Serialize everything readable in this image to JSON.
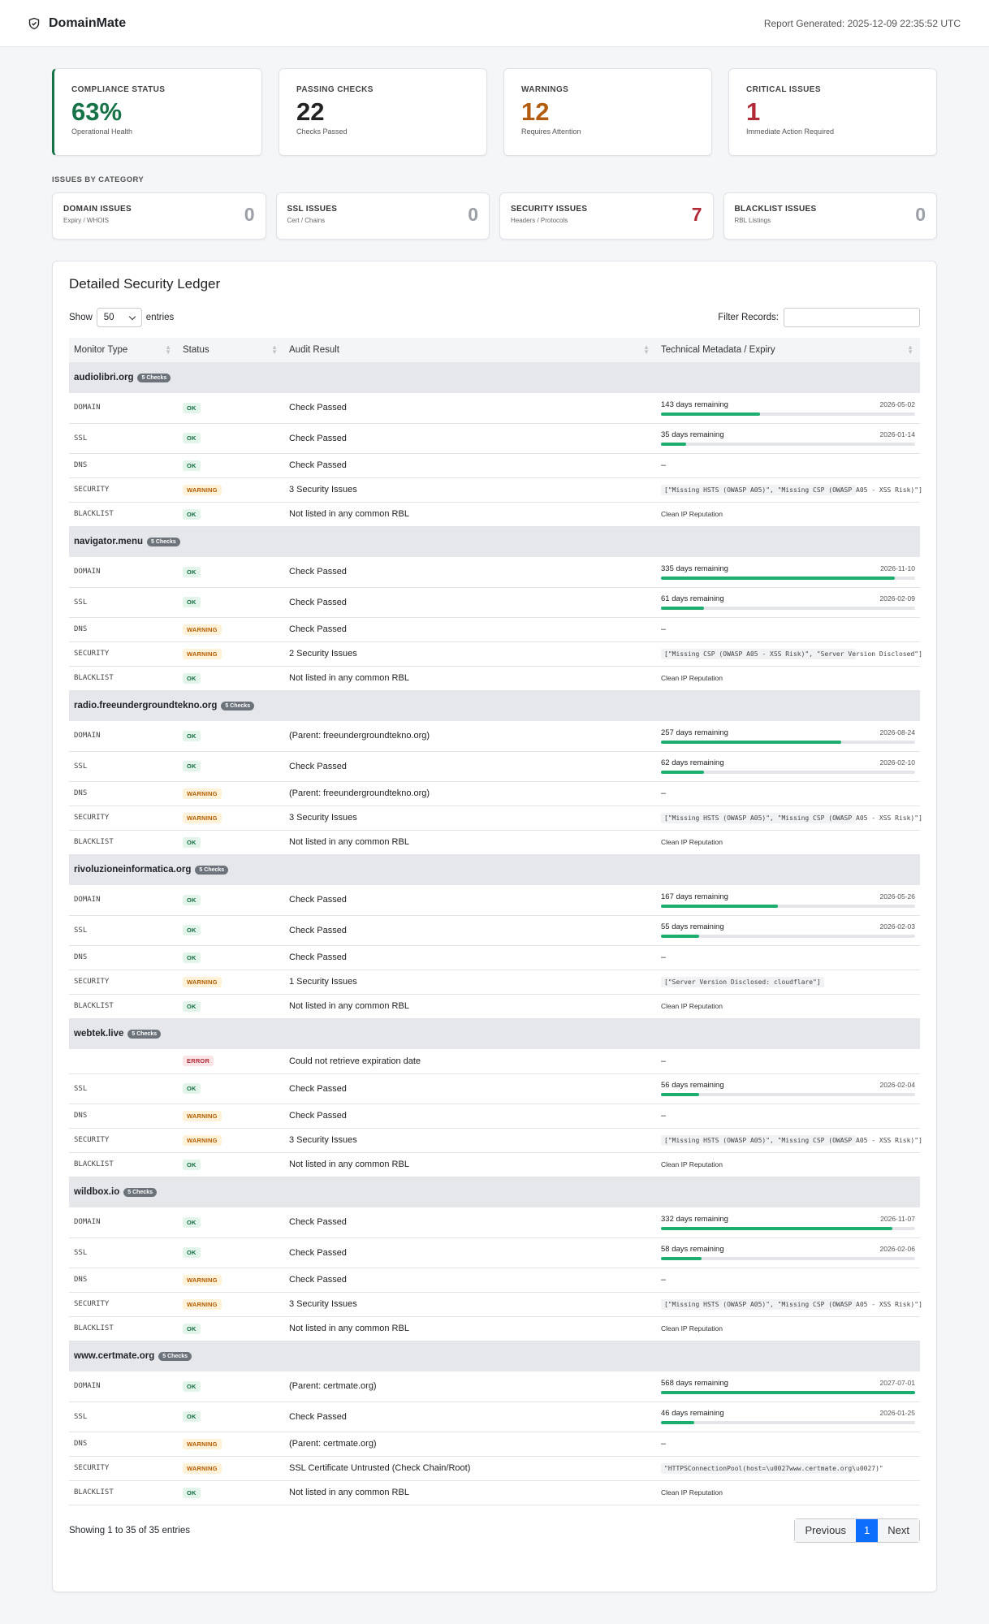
{
  "header": {
    "brand": "DomainMate",
    "generated": "Report Generated: 2025-12-09 22:35:52 UTC"
  },
  "kpis": [
    {
      "label": "COMPLIANCE STATUS",
      "value": "63%",
      "sub": "Operational Health",
      "color": "#157347"
    },
    {
      "label": "PASSING CHECKS",
      "value": "22",
      "sub": "Checks Passed",
      "color": "#222222"
    },
    {
      "label": "WARNINGS",
      "value": "12",
      "sub": "Requires Attention",
      "color": "#b35c0f"
    },
    {
      "label": "CRITICAL ISSUES",
      "value": "1",
      "sub": "Immediate Action Required",
      "color": "#b02a37"
    }
  ],
  "categories_title": "ISSUES BY CATEGORY",
  "categories": [
    {
      "label": "DOMAIN ISSUES",
      "sub": "Expiry / WHOIS",
      "count": "0"
    },
    {
      "label": "SSL ISSUES",
      "sub": "Cert / Chains",
      "count": "0"
    },
    {
      "label": "SECURITY ISSUES",
      "sub": "Headers / Protocols",
      "count": "7"
    },
    {
      "label": "BLACKLIST ISSUES",
      "sub": "RBL Listings",
      "count": "0"
    }
  ],
  "ledger": {
    "title": "Detailed Security Ledger",
    "show_label": "Show",
    "entries_value": "50",
    "entries_label": "entries",
    "filter_label": "Filter Records:",
    "columns": [
      "Monitor Type",
      "Status",
      "Audit Result",
      "Technical Metadata / Expiry"
    ],
    "groups": [
      {
        "domain": "audiolibri.org",
        "checks": "5 Checks",
        "rows": [
          {
            "type": "DOMAIN",
            "status": "OK",
            "result": "Check Passed",
            "days": "143 days remaining",
            "date": "2026-05-02",
            "pct": 0.39
          },
          {
            "type": "SSL",
            "status": "OK",
            "result": "Check Passed",
            "days": "35 days remaining",
            "date": "2026-01-14",
            "pct": 0.1
          },
          {
            "type": "DNS",
            "status": "OK",
            "result": "Check Passed",
            "meta": "–"
          },
          {
            "type": "SECURITY",
            "status": "WARNING",
            "result": "3 Security Issues",
            "code": "[\"Missing HSTS (OWASP A05)\", \"Missing CSP (OWASP A05 - XSS Risk)\"]"
          },
          {
            "type": "BLACKLIST",
            "status": "OK",
            "result": "Not listed in any common RBL",
            "small": "Clean IP Reputation"
          }
        ]
      },
      {
        "domain": "navigator.menu",
        "checks": "5 Checks",
        "rows": [
          {
            "type": "DOMAIN",
            "status": "OK",
            "result": "Check Passed",
            "days": "335 days remaining",
            "date": "2026-11-10",
            "pct": 0.92
          },
          {
            "type": "SSL",
            "status": "OK",
            "result": "Check Passed",
            "days": "61 days remaining",
            "date": "2026-02-09",
            "pct": 0.17
          },
          {
            "type": "DNS",
            "status": "WARNING",
            "result": "Check Passed",
            "meta": "–"
          },
          {
            "type": "SECURITY",
            "status": "WARNING",
            "result": "2 Security Issues",
            "code": "[\"Missing CSP (OWASP A05 - XSS Risk)\", \"Server Version Disclosed\"]"
          },
          {
            "type": "BLACKLIST",
            "status": "OK",
            "result": "Not listed in any common RBL",
            "small": "Clean IP Reputation"
          }
        ]
      },
      {
        "domain": "radio.freeundergroundtekno.org",
        "checks": "5 Checks",
        "rows": [
          {
            "type": "DOMAIN",
            "status": "OK",
            "result": "(Parent: freeundergroundtekno.org)",
            "days": "257 days remaining",
            "date": "2026-08-24",
            "pct": 0.71
          },
          {
            "type": "SSL",
            "status": "OK",
            "result": "Check Passed",
            "days": "62 days remaining",
            "date": "2026-02-10",
            "pct": 0.17
          },
          {
            "type": "DNS",
            "status": "WARNING",
            "result": "(Parent: freeundergroundtekno.org)",
            "meta": "–"
          },
          {
            "type": "SECURITY",
            "status": "WARNING",
            "result": "3 Security Issues",
            "code": "[\"Missing HSTS (OWASP A05)\", \"Missing CSP (OWASP A05 - XSS Risk)\"]"
          },
          {
            "type": "BLACKLIST",
            "status": "OK",
            "result": "Not listed in any common RBL",
            "small": "Clean IP Reputation"
          }
        ]
      },
      {
        "domain": "rivoluzioneinformatica.org",
        "checks": "5 Checks",
        "rows": [
          {
            "type": "DOMAIN",
            "status": "OK",
            "result": "Check Passed",
            "days": "167 days remaining",
            "date": "2026-05-26",
            "pct": 0.46
          },
          {
            "type": "SSL",
            "status": "OK",
            "result": "Check Passed",
            "days": "55 days remaining",
            "date": "2026-02-03",
            "pct": 0.15
          },
          {
            "type": "DNS",
            "status": "OK",
            "result": "Check Passed",
            "meta": "–"
          },
          {
            "type": "SECURITY",
            "status": "WARNING",
            "result": "1 Security Issues",
            "code": "[\"Server Version Disclosed: cloudflare\"]"
          },
          {
            "type": "BLACKLIST",
            "status": "OK",
            "result": "Not listed in any common RBL",
            "small": "Clean IP Reputation"
          }
        ]
      },
      {
        "domain": "webtek.live",
        "checks": "5 Checks",
        "rows": [
          {
            "type": "",
            "status": "ERROR",
            "result": "Could not retrieve expiration date",
            "meta": "–"
          },
          {
            "type": "SSL",
            "status": "OK",
            "result": "Check Passed",
            "days": "56 days remaining",
            "date": "2026-02-04",
            "pct": 0.15
          },
          {
            "type": "DNS",
            "status": "WARNING",
            "result": "Check Passed",
            "meta": "–"
          },
          {
            "type": "SECURITY",
            "status": "WARNING",
            "result": "3 Security Issues",
            "code": "[\"Missing HSTS (OWASP A05)\", \"Missing CSP (OWASP A05 - XSS Risk)\"]"
          },
          {
            "type": "BLACKLIST",
            "status": "OK",
            "result": "Not listed in any common RBL",
            "small": "Clean IP Reputation"
          }
        ]
      },
      {
        "domain": "wildbox.io",
        "checks": "5 Checks",
        "rows": [
          {
            "type": "DOMAIN",
            "status": "OK",
            "result": "Check Passed",
            "days": "332 days remaining",
            "date": "2026-11-07",
            "pct": 0.91
          },
          {
            "type": "SSL",
            "status": "OK",
            "result": "Check Passed",
            "days": "58 days remaining",
            "date": "2026-02-06",
            "pct": 0.16
          },
          {
            "type": "DNS",
            "status": "WARNING",
            "result": "Check Passed",
            "meta": "–"
          },
          {
            "type": "SECURITY",
            "status": "WARNING",
            "result": "3 Security Issues",
            "code": "[\"Missing HSTS (OWASP A05)\", \"Missing CSP (OWASP A05 - XSS Risk)\"]"
          },
          {
            "type": "BLACKLIST",
            "status": "OK",
            "result": "Not listed in any common RBL",
            "small": "Clean IP Reputation"
          }
        ]
      },
      {
        "domain": "www.certmate.org",
        "checks": "5 Checks",
        "rows": [
          {
            "type": "DOMAIN",
            "status": "OK",
            "result": "(Parent: certmate.org)",
            "days": "568 days remaining",
            "date": "2027-07-01",
            "pct": 1.0
          },
          {
            "type": "SSL",
            "status": "OK",
            "result": "Check Passed",
            "days": "46 days remaining",
            "date": "2026-01-25",
            "pct": 0.13
          },
          {
            "type": "DNS",
            "status": "WARNING",
            "result": "(Parent: certmate.org)",
            "meta": "–"
          },
          {
            "type": "SECURITY",
            "status": "WARNING",
            "result": "SSL Certificate Untrusted (Check Chain/Root)",
            "code": "\"HTTPSConnectionPool(host=\\u0027www.certmate.org\\u0027)\""
          },
          {
            "type": "BLACKLIST",
            "status": "OK",
            "result": "Not listed in any common RBL",
            "small": "Clean IP Reputation"
          }
        ]
      }
    ],
    "showing": "Showing 1 to 35 of 35 entries",
    "pager": {
      "prev": "Previous",
      "page": "1",
      "next": "Next"
    }
  }
}
